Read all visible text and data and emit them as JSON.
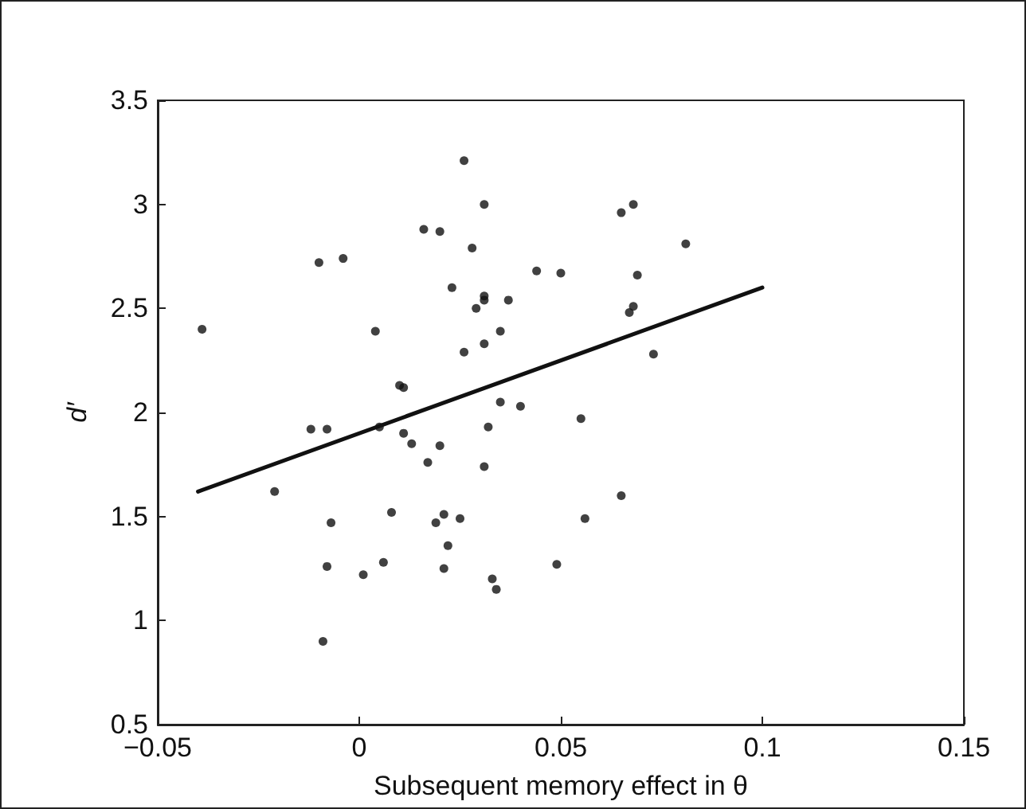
{
  "chart_data": {
    "type": "scatter",
    "xlabel": "Subsequent memory effect in θ",
    "ylabel": "d′",
    "xlim": [
      -0.05,
      0.15
    ],
    "xticks": [
      {
        "value": -0.05,
        "label": "−0.05"
      },
      0,
      0.05,
      0.1,
      0.15
    ],
    "ylim": [
      0.5,
      3.5
    ],
    "yticks": [
      0.5,
      1,
      1.5,
      2,
      2.5,
      3,
      3.5
    ],
    "grid": false,
    "marker": "circle",
    "series": [
      {
        "color": "#111111",
        "x": [
          -0.039,
          -0.021,
          -0.012,
          -0.01,
          -0.009,
          -0.008,
          -0.008,
          -0.007,
          -0.004,
          0.001,
          0.004,
          0.005,
          0.006,
          0.008,
          0.01,
          0.011,
          0.011,
          0.013,
          0.016,
          0.017,
          0.019,
          0.02,
          0.02,
          0.021,
          0.021,
          0.022,
          0.023,
          0.025,
          0.026,
          0.026,
          0.028,
          0.029,
          0.031,
          0.031,
          0.031,
          0.031,
          0.031,
          0.032,
          0.033,
          0.034,
          0.035,
          0.035,
          0.037,
          0.04,
          0.044,
          0.049,
          0.05,
          0.055,
          0.056,
          0.065,
          0.065,
          0.067,
          0.068,
          0.068,
          0.069,
          0.073,
          0.081
        ],
        "values": [
          2.4,
          1.62,
          1.92,
          2.72,
          0.9,
          1.92,
          1.26,
          1.47,
          2.74,
          1.22,
          2.39,
          1.93,
          1.28,
          1.52,
          2.13,
          2.12,
          1.9,
          1.85,
          2.88,
          1.76,
          1.47,
          2.87,
          1.84,
          1.25,
          1.51,
          1.36,
          2.6,
          1.49,
          3.21,
          2.29,
          2.79,
          2.5,
          3.0,
          2.56,
          2.54,
          2.33,
          1.74,
          1.93,
          1.2,
          1.15,
          2.39,
          2.05,
          2.54,
          2.03,
          2.68,
          1.27,
          2.67,
          1.97,
          1.49,
          1.6,
          2.96,
          2.48,
          3.0,
          2.51,
          2.66,
          2.28,
          2.81
        ]
      },
      {
        "type": "line",
        "color": "#111111",
        "marker": "none",
        "line_style": "solid",
        "x": [
          -0.04,
          0.1
        ],
        "values": [
          1.62,
          2.6
        ]
      }
    ]
  }
}
